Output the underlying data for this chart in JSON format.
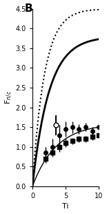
{
  "title": "B",
  "ylabel": "F$_{n/c}$",
  "xlabel": "Ti",
  "xlim": [
    0,
    10
  ],
  "ylim": [
    0,
    4.5
  ],
  "yticks": [
    0.0,
    0.5,
    1.0,
    1.5,
    2.0,
    2.5,
    3.0,
    3.5,
    4.0,
    4.5
  ],
  "ytick_labels": [
    "0.0",
    "0.5",
    "1.0",
    "1.5",
    "2.0",
    "2.5",
    "3.0",
    "3.5",
    "4.0",
    "4.5"
  ],
  "xticks": [
    0,
    5,
    10
  ],
  "xtick_labels": [
    "0",
    "5",
    "10"
  ],
  "curve_dotted": {
    "A": 4.5,
    "k": 0.55
  },
  "curve_solid_thick": {
    "A": 3.8,
    "k": 0.4
  },
  "curve_solid_thin": {
    "A": 1.6,
    "k": 0.28
  },
  "series_filled_circles": {
    "x": [
      2,
      3,
      4,
      5,
      6,
      7,
      8,
      9,
      10
    ],
    "y": [
      0.85,
      1.0,
      1.3,
      1.45,
      1.5,
      1.45,
      1.5,
      1.4,
      1.5
    ],
    "yerr": [
      0.15,
      0.2,
      0.25,
      0.2,
      0.15,
      0.12,
      0.1,
      0.1,
      0.1
    ]
  },
  "series_open_circle": {
    "x": [
      3.5
    ],
    "y": [
      1.55
    ],
    "yerr": [
      0.25
    ]
  },
  "series_filled_squares": {
    "x": [
      2,
      3,
      4,
      5,
      6,
      7,
      8,
      9,
      10
    ],
    "y": [
      0.7,
      0.85,
      1.0,
      1.1,
      1.15,
      1.2,
      1.2,
      1.25,
      1.3
    ],
    "yerr": [
      0.1,
      0.1,
      0.12,
      0.1,
      0.08,
      0.08,
      0.08,
      0.08,
      0.08
    ]
  }
}
